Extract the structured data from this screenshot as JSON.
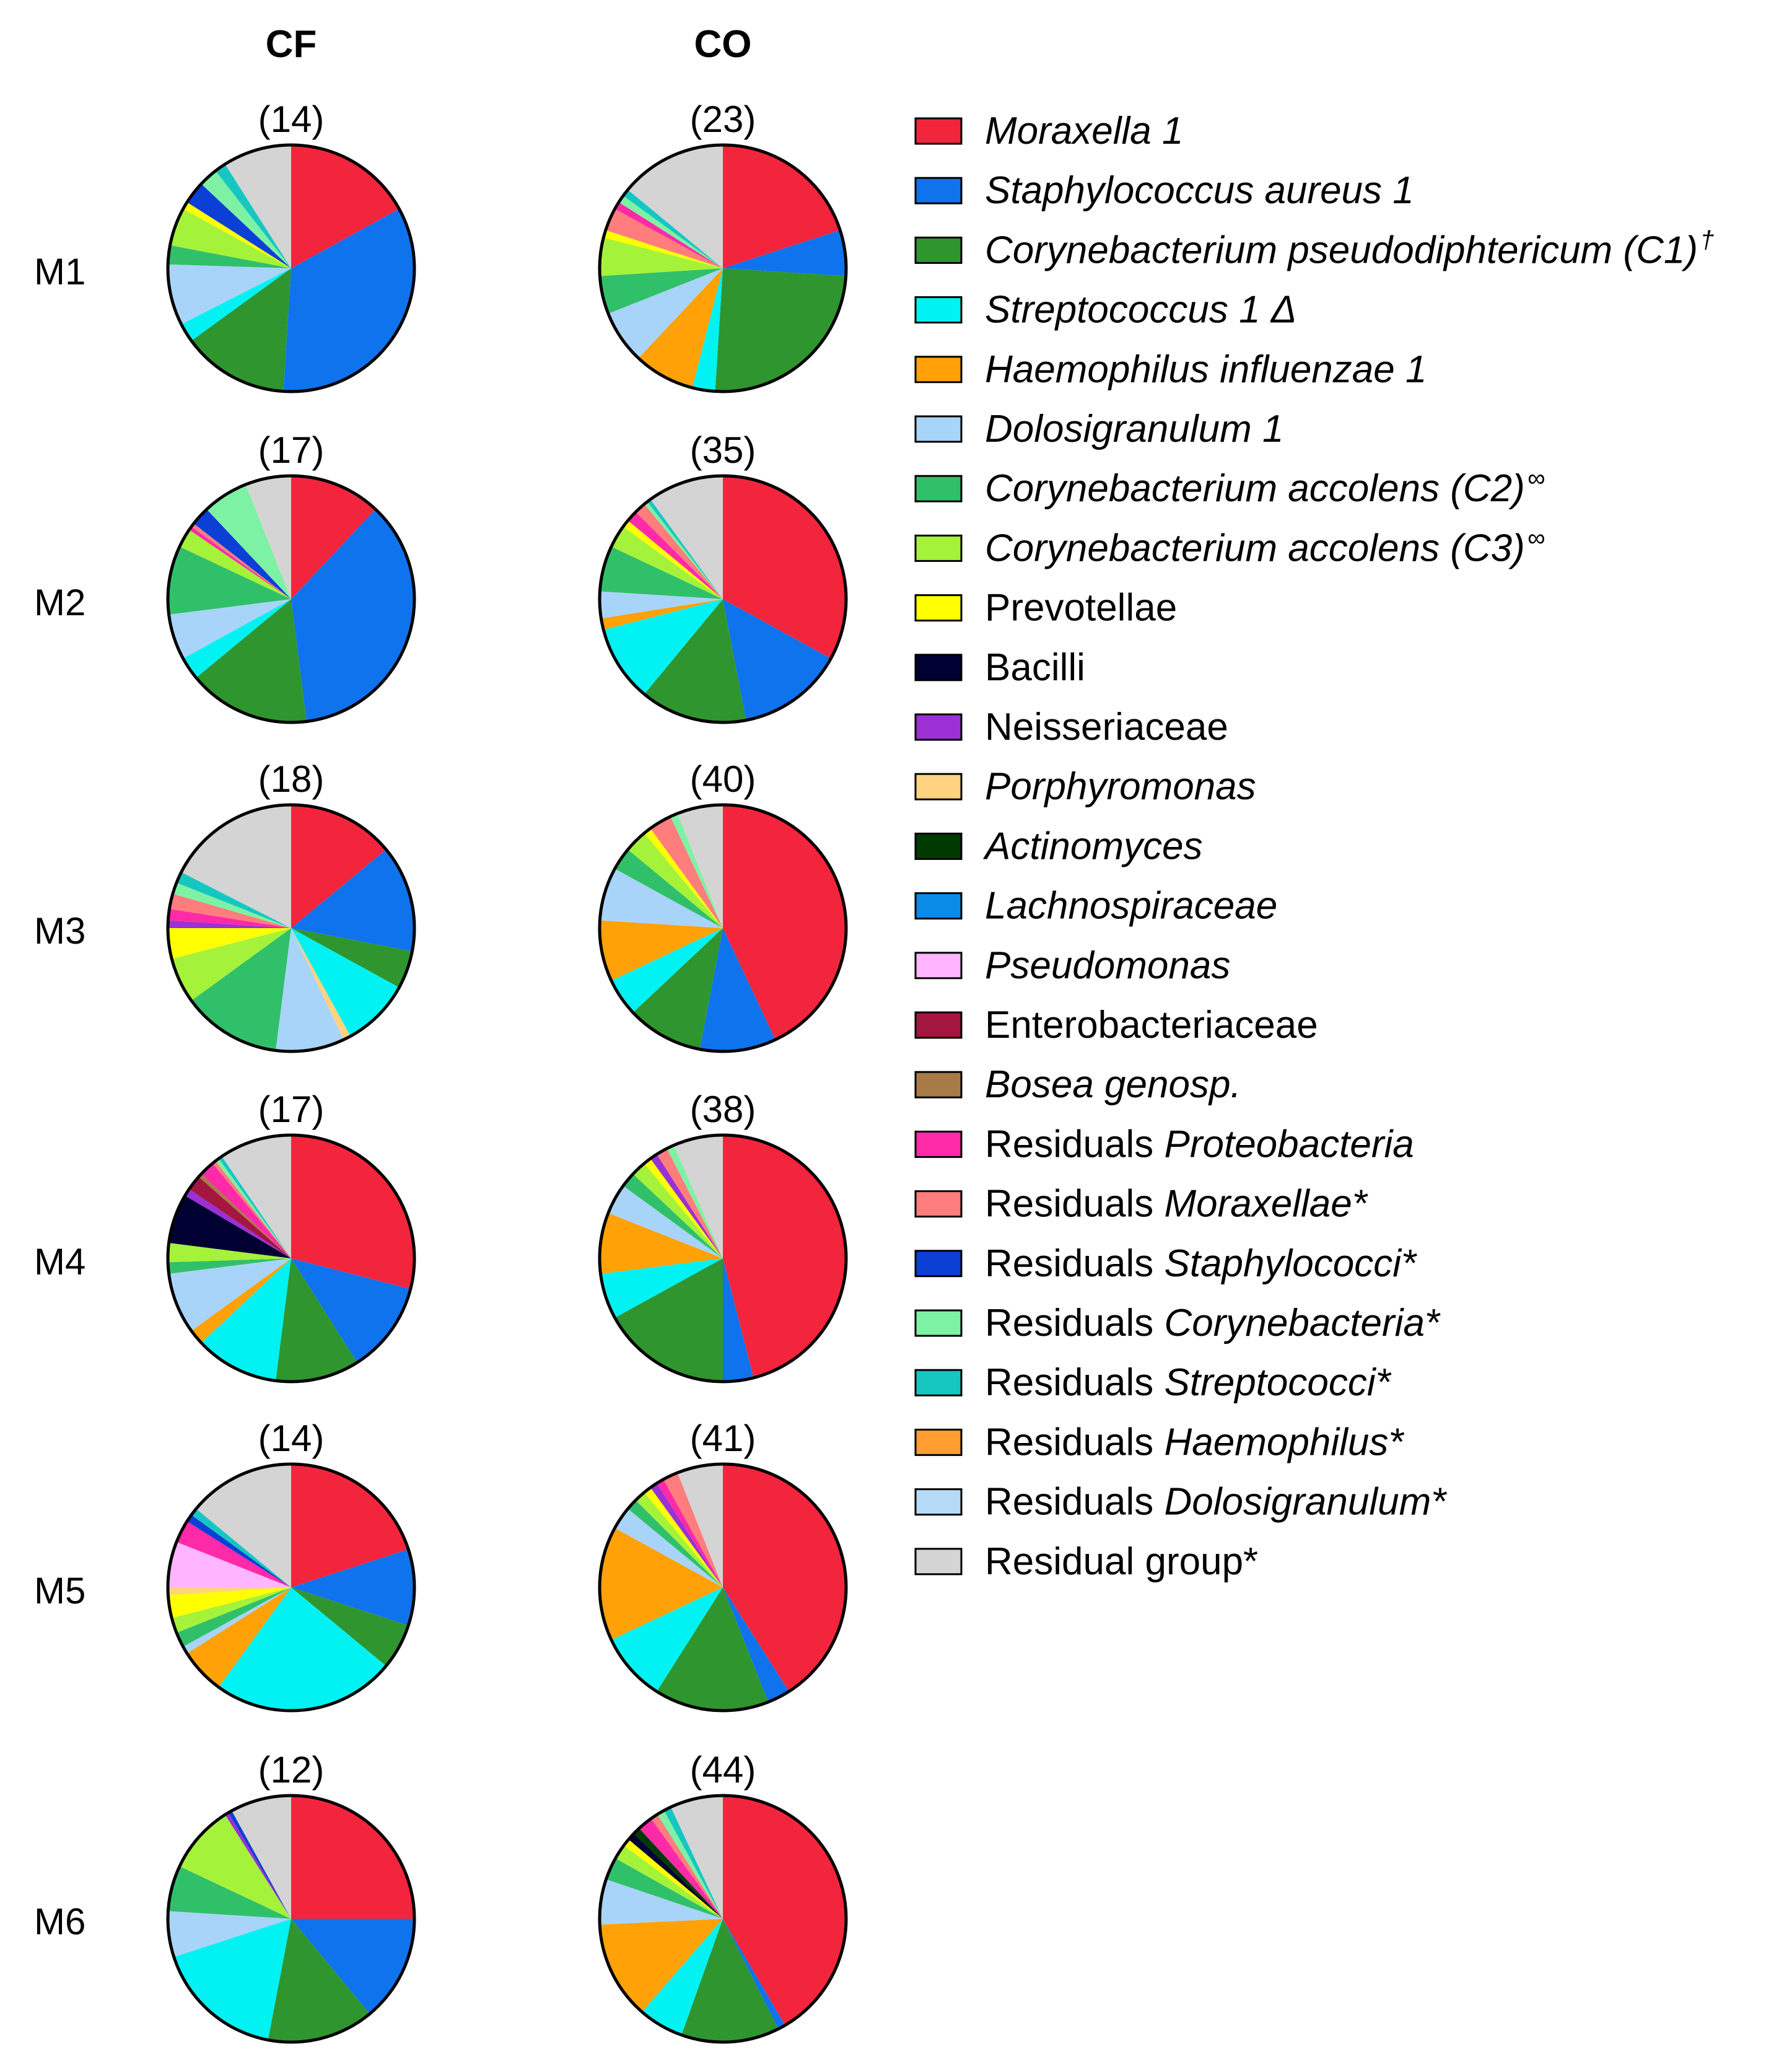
{
  "chart_data": {
    "type": "pie",
    "title": "",
    "columns": [
      "CF",
      "CO"
    ],
    "rows": [
      "M1",
      "M2",
      "M3",
      "M4",
      "M5",
      "M6"
    ],
    "categories": [
      {
        "parts": [
          {
            "t": "Moraxella 1",
            "i": true
          }
        ],
        "color": "#f3253c"
      },
      {
        "parts": [
          {
            "t": "Staphylococcus aureus 1",
            "i": true
          }
        ],
        "color": "#0f73ee"
      },
      {
        "parts": [
          {
            "t": "Corynebacterium pseudodiphtericum (C1)",
            "i": true
          },
          {
            "t": "†",
            "i": true,
            "sup": true
          }
        ],
        "color": "#2f952e"
      },
      {
        "parts": [
          {
            "t": "Streptococcus 1 ",
            "i": true
          },
          {
            "t": "Δ",
            "i": true
          }
        ],
        "color": "#00f2f2"
      },
      {
        "parts": [
          {
            "t": "Haemophilus influenzae 1",
            "i": true
          }
        ],
        "color": "#ffa107"
      },
      {
        "parts": [
          {
            "t": "Dolosigranulum 1",
            "i": true
          }
        ],
        "color": "#a9d4f9"
      },
      {
        "parts": [
          {
            "t": "Corynebacterium accolens (C2)",
            "i": true
          },
          {
            "t": "∞",
            "i": true,
            "sup": true
          }
        ],
        "color": "#31c06a"
      },
      {
        "parts": [
          {
            "t": "Corynebacterium accolens (C3)",
            "i": true
          },
          {
            "t": "∞",
            "i": true,
            "sup": true
          }
        ],
        "color": "#a5f23a"
      },
      {
        "parts": [
          {
            "t": "Prevotellae",
            "i": false
          }
        ],
        "color": "#ffff00"
      },
      {
        "parts": [
          {
            "t": "Bacilli",
            "i": false
          }
        ],
        "color": "#000033"
      },
      {
        "parts": [
          {
            "t": "Neisseriaceae",
            "i": false
          }
        ],
        "color": "#9b30d4"
      },
      {
        "parts": [
          {
            "t": "Porphyromonas",
            "i": true
          }
        ],
        "color": "#ffd37f"
      },
      {
        "parts": [
          {
            "t": "Actinomyces",
            "i": true
          }
        ],
        "color": "#003a00"
      },
      {
        "parts": [
          {
            "t": "Lachnospiraceae",
            "i": true
          }
        ],
        "color": "#0b8be8"
      },
      {
        "parts": [
          {
            "t": "Pseudomonas",
            "i": true
          }
        ],
        "color": "#ffb5ff"
      },
      {
        "parts": [
          {
            "t": "Enterobacteriaceae",
            "i": false
          }
        ],
        "color": "#a3163f"
      },
      {
        "parts": [
          {
            "t": "Bosea genosp.",
            "i": true
          }
        ],
        "color": "#a87a45"
      },
      {
        "parts": [
          {
            "t": "Residuals ",
            "i": false
          },
          {
            "t": "Proteobacteria",
            "i": true
          }
        ],
        "color": "#ff2aa8"
      },
      {
        "parts": [
          {
            "t": "Residuals ",
            "i": false
          },
          {
            "t": "Moraxellae*",
            "i": true
          }
        ],
        "color": "#ff7d7d"
      },
      {
        "parts": [
          {
            "t": "Residuals ",
            "i": false
          },
          {
            "t": "Staphylococci*",
            "i": true
          }
        ],
        "color": "#0b3fd6"
      },
      {
        "parts": [
          {
            "t": "Residuals ",
            "i": false
          },
          {
            "t": "Corynebacteria*",
            "i": true
          }
        ],
        "color": "#7ef2a4"
      },
      {
        "parts": [
          {
            "t": "Residuals ",
            "i": false
          },
          {
            "t": "Streptococci*",
            "i": true
          }
        ],
        "color": "#16c7c1"
      },
      {
        "parts": [
          {
            "t": "Residuals ",
            "i": false
          },
          {
            "t": "Haemophilus*",
            "i": true
          }
        ],
        "color": "#ff9d2e"
      },
      {
        "parts": [
          {
            "t": "Residuals ",
            "i": false
          },
          {
            "t": "Dolosigranulum*",
            "i": true
          }
        ],
        "color": "#b5daf7"
      },
      {
        "parts": [
          {
            "t": "Residual group*",
            "i": false
          }
        ],
        "color": "#d4d4d4"
      }
    ],
    "pies": [
      {
        "row": "M1",
        "column": "CF",
        "n": "(14)",
        "slices": [
          {
            "c": 0,
            "v": 17.0
          },
          {
            "c": 1,
            "v": 34.0
          },
          {
            "c": 2,
            "v": 14.0
          },
          {
            "c": 3,
            "v": 2.5
          },
          {
            "c": 5,
            "v": 8.0
          },
          {
            "c": 6,
            "v": 2.5
          },
          {
            "c": 7,
            "v": 5.0
          },
          {
            "c": 8,
            "v": 1.0
          },
          {
            "c": 19,
            "v": 3.0
          },
          {
            "c": 20,
            "v": 2.5
          },
          {
            "c": 21,
            "v": 1.5
          },
          {
            "c": 24,
            "v": 9.0
          }
        ]
      },
      {
        "row": "M1",
        "column": "CO",
        "n": "(23)",
        "slices": [
          {
            "c": 0,
            "v": 20.0
          },
          {
            "c": 1,
            "v": 6.0
          },
          {
            "c": 2,
            "v": 25.0
          },
          {
            "c": 3,
            "v": 3.0
          },
          {
            "c": 4,
            "v": 8.0
          },
          {
            "c": 5,
            "v": 7.0
          },
          {
            "c": 6,
            "v": 5.0
          },
          {
            "c": 7,
            "v": 5.0
          },
          {
            "c": 8,
            "v": 1.0
          },
          {
            "c": 18,
            "v": 3.0
          },
          {
            "c": 17,
            "v": 1.0
          },
          {
            "c": 20,
            "v": 1.0
          },
          {
            "c": 21,
            "v": 1.0
          },
          {
            "c": 24,
            "v": 14.0
          }
        ]
      },
      {
        "row": "M2",
        "column": "CF",
        "n": "(17)",
        "slices": [
          {
            "c": 0,
            "v": 12.0
          },
          {
            "c": 1,
            "v": 36.0
          },
          {
            "c": 2,
            "v": 16.0
          },
          {
            "c": 3,
            "v": 3.0
          },
          {
            "c": 5,
            "v": 6.0
          },
          {
            "c": 6,
            "v": 9.0
          },
          {
            "c": 7,
            "v": 2.5
          },
          {
            "c": 17,
            "v": 0.5
          },
          {
            "c": 18,
            "v": 0.5
          },
          {
            "c": 19,
            "v": 2.5
          },
          {
            "c": 20,
            "v": 6.0
          },
          {
            "c": 24,
            "v": 6.0
          }
        ]
      },
      {
        "row": "M2",
        "column": "CO",
        "n": "(35)",
        "slices": [
          {
            "c": 0,
            "v": 33.0
          },
          {
            "c": 1,
            "v": 14.0
          },
          {
            "c": 2,
            "v": 14.0
          },
          {
            "c": 3,
            "v": 10.0
          },
          {
            "c": 4,
            "v": 1.5
          },
          {
            "c": 5,
            "v": 3.5
          },
          {
            "c": 6,
            "v": 6.0
          },
          {
            "c": 7,
            "v": 3.0
          },
          {
            "c": 8,
            "v": 1.0
          },
          {
            "c": 17,
            "v": 1.5
          },
          {
            "c": 18,
            "v": 1.5
          },
          {
            "c": 20,
            "v": 0.5
          },
          {
            "c": 21,
            "v": 0.5
          },
          {
            "c": 24,
            "v": 10.0
          }
        ]
      },
      {
        "row": "M3",
        "column": "CF",
        "n": "(18)",
        "slices": [
          {
            "c": 0,
            "v": 14.0
          },
          {
            "c": 1,
            "v": 14.0
          },
          {
            "c": 2,
            "v": 5.0
          },
          {
            "c": 3,
            "v": 9.0
          },
          {
            "c": 11,
            "v": 1.0
          },
          {
            "c": 5,
            "v": 9.0
          },
          {
            "c": 6,
            "v": 13.0
          },
          {
            "c": 7,
            "v": 6.0
          },
          {
            "c": 8,
            "v": 4.0
          },
          {
            "c": 10,
            "v": 1.0
          },
          {
            "c": 17,
            "v": 1.5
          },
          {
            "c": 18,
            "v": 2.0
          },
          {
            "c": 20,
            "v": 1.5
          },
          {
            "c": 21,
            "v": 1.5
          },
          {
            "c": 24,
            "v": 17.5
          }
        ]
      },
      {
        "row": "M3",
        "column": "CO",
        "n": "(40)",
        "slices": [
          {
            "c": 0,
            "v": 43.0
          },
          {
            "c": 1,
            "v": 10.0
          },
          {
            "c": 2,
            "v": 10.0
          },
          {
            "c": 3,
            "v": 5.0
          },
          {
            "c": 4,
            "v": 8.0
          },
          {
            "c": 5,
            "v": 7.0
          },
          {
            "c": 6,
            "v": 3.0
          },
          {
            "c": 7,
            "v": 3.0
          },
          {
            "c": 8,
            "v": 1.0
          },
          {
            "c": 18,
            "v": 3.0
          },
          {
            "c": 20,
            "v": 1.0
          },
          {
            "c": 24,
            "v": 6.0
          }
        ]
      },
      {
        "row": "M4",
        "column": "CF",
        "n": "(17)",
        "slices": [
          {
            "c": 0,
            "v": 29.0
          },
          {
            "c": 1,
            "v": 12.0
          },
          {
            "c": 2,
            "v": 11.0
          },
          {
            "c": 3,
            "v": 11.0
          },
          {
            "c": 4,
            "v": 2.0
          },
          {
            "c": 5,
            "v": 8.0
          },
          {
            "c": 6,
            "v": 1.5
          },
          {
            "c": 7,
            "v": 2.5
          },
          {
            "c": 9,
            "v": 6.5
          },
          {
            "c": 10,
            "v": 1.0
          },
          {
            "c": 15,
            "v": 2.0
          },
          {
            "c": 16,
            "v": 0.5
          },
          {
            "c": 17,
            "v": 2.0
          },
          {
            "c": 18,
            "v": 0.5
          },
          {
            "c": 20,
            "v": 0.5
          },
          {
            "c": 21,
            "v": 0.5
          },
          {
            "c": 24,
            "v": 9.5
          }
        ]
      },
      {
        "row": "M4",
        "column": "CO",
        "n": "(38)",
        "slices": [
          {
            "c": 0,
            "v": 46.0
          },
          {
            "c": 1,
            "v": 4.0
          },
          {
            "c": 2,
            "v": 17.0
          },
          {
            "c": 3,
            "v": 6.0
          },
          {
            "c": 4,
            "v": 8.0
          },
          {
            "c": 5,
            "v": 4.0
          },
          {
            "c": 6,
            "v": 2.0
          },
          {
            "c": 7,
            "v": 2.0
          },
          {
            "c": 8,
            "v": 1.0
          },
          {
            "c": 10,
            "v": 1.0
          },
          {
            "c": 18,
            "v": 1.5
          },
          {
            "c": 20,
            "v": 1.0
          },
          {
            "c": 24,
            "v": 6.5
          }
        ]
      },
      {
        "row": "M5",
        "column": "CF",
        "n": "(14)",
        "slices": [
          {
            "c": 0,
            "v": 20.0
          },
          {
            "c": 1,
            "v": 10.0
          },
          {
            "c": 2,
            "v": 6.0
          },
          {
            "c": 3,
            "v": 24.0
          },
          {
            "c": 4,
            "v": 6.0
          },
          {
            "c": 5,
            "v": 1.0
          },
          {
            "c": 6,
            "v": 2.0
          },
          {
            "c": 7,
            "v": 2.0
          },
          {
            "c": 8,
            "v": 3.0
          },
          {
            "c": 11,
            "v": 1.0
          },
          {
            "c": 14,
            "v": 6.0
          },
          {
            "c": 17,
            "v": 3.0
          },
          {
            "c": 19,
            "v": 1.0
          },
          {
            "c": 21,
            "v": 1.0
          },
          {
            "c": 24,
            "v": 14.0
          }
        ]
      },
      {
        "row": "M5",
        "column": "CO",
        "n": "(41)",
        "slices": [
          {
            "c": 0,
            "v": 41.0
          },
          {
            "c": 1,
            "v": 3.0
          },
          {
            "c": 2,
            "v": 15.0
          },
          {
            "c": 3,
            "v": 9.0
          },
          {
            "c": 4,
            "v": 15.0
          },
          {
            "c": 5,
            "v": 3.0
          },
          {
            "c": 6,
            "v": 1.5
          },
          {
            "c": 7,
            "v": 1.5
          },
          {
            "c": 8,
            "v": 1.0
          },
          {
            "c": 10,
            "v": 1.0
          },
          {
            "c": 17,
            "v": 1.0
          },
          {
            "c": 18,
            "v": 2.0
          },
          {
            "c": 24,
            "v": 6.0
          }
        ]
      },
      {
        "row": "M6",
        "column": "CF",
        "n": "(12)",
        "slices": [
          {
            "c": 0,
            "v": 25.0
          },
          {
            "c": 1,
            "v": 14.0
          },
          {
            "c": 2,
            "v": 14.0
          },
          {
            "c": 3,
            "v": 17.0
          },
          {
            "c": 5,
            "v": 6.0
          },
          {
            "c": 6,
            "v": 6.0
          },
          {
            "c": 7,
            "v": 9.0
          },
          {
            "c": 10,
            "v": 0.5
          },
          {
            "c": 19,
            "v": 0.5
          },
          {
            "c": 24,
            "v": 8.0
          }
        ]
      },
      {
        "row": "M6",
        "column": "CO",
        "n": "(44)",
        "slices": [
          {
            "c": 0,
            "v": 42.0
          },
          {
            "c": 1,
            "v": 1.0
          },
          {
            "c": 2,
            "v": 13.0
          },
          {
            "c": 3,
            "v": 6.0
          },
          {
            "c": 4,
            "v": 13.0
          },
          {
            "c": 5,
            "v": 6.0
          },
          {
            "c": 6,
            "v": 3.0
          },
          {
            "c": 7,
            "v": 2.0
          },
          {
            "c": 8,
            "v": 1.0
          },
          {
            "c": 9,
            "v": 1.0
          },
          {
            "c": 12,
            "v": 1.0
          },
          {
            "c": 17,
            "v": 2.0
          },
          {
            "c": 18,
            "v": 1.0
          },
          {
            "c": 20,
            "v": 1.0
          },
          {
            "c": 21,
            "v": 1.0
          },
          {
            "c": 24,
            "v": 7.0
          }
        ]
      }
    ]
  }
}
